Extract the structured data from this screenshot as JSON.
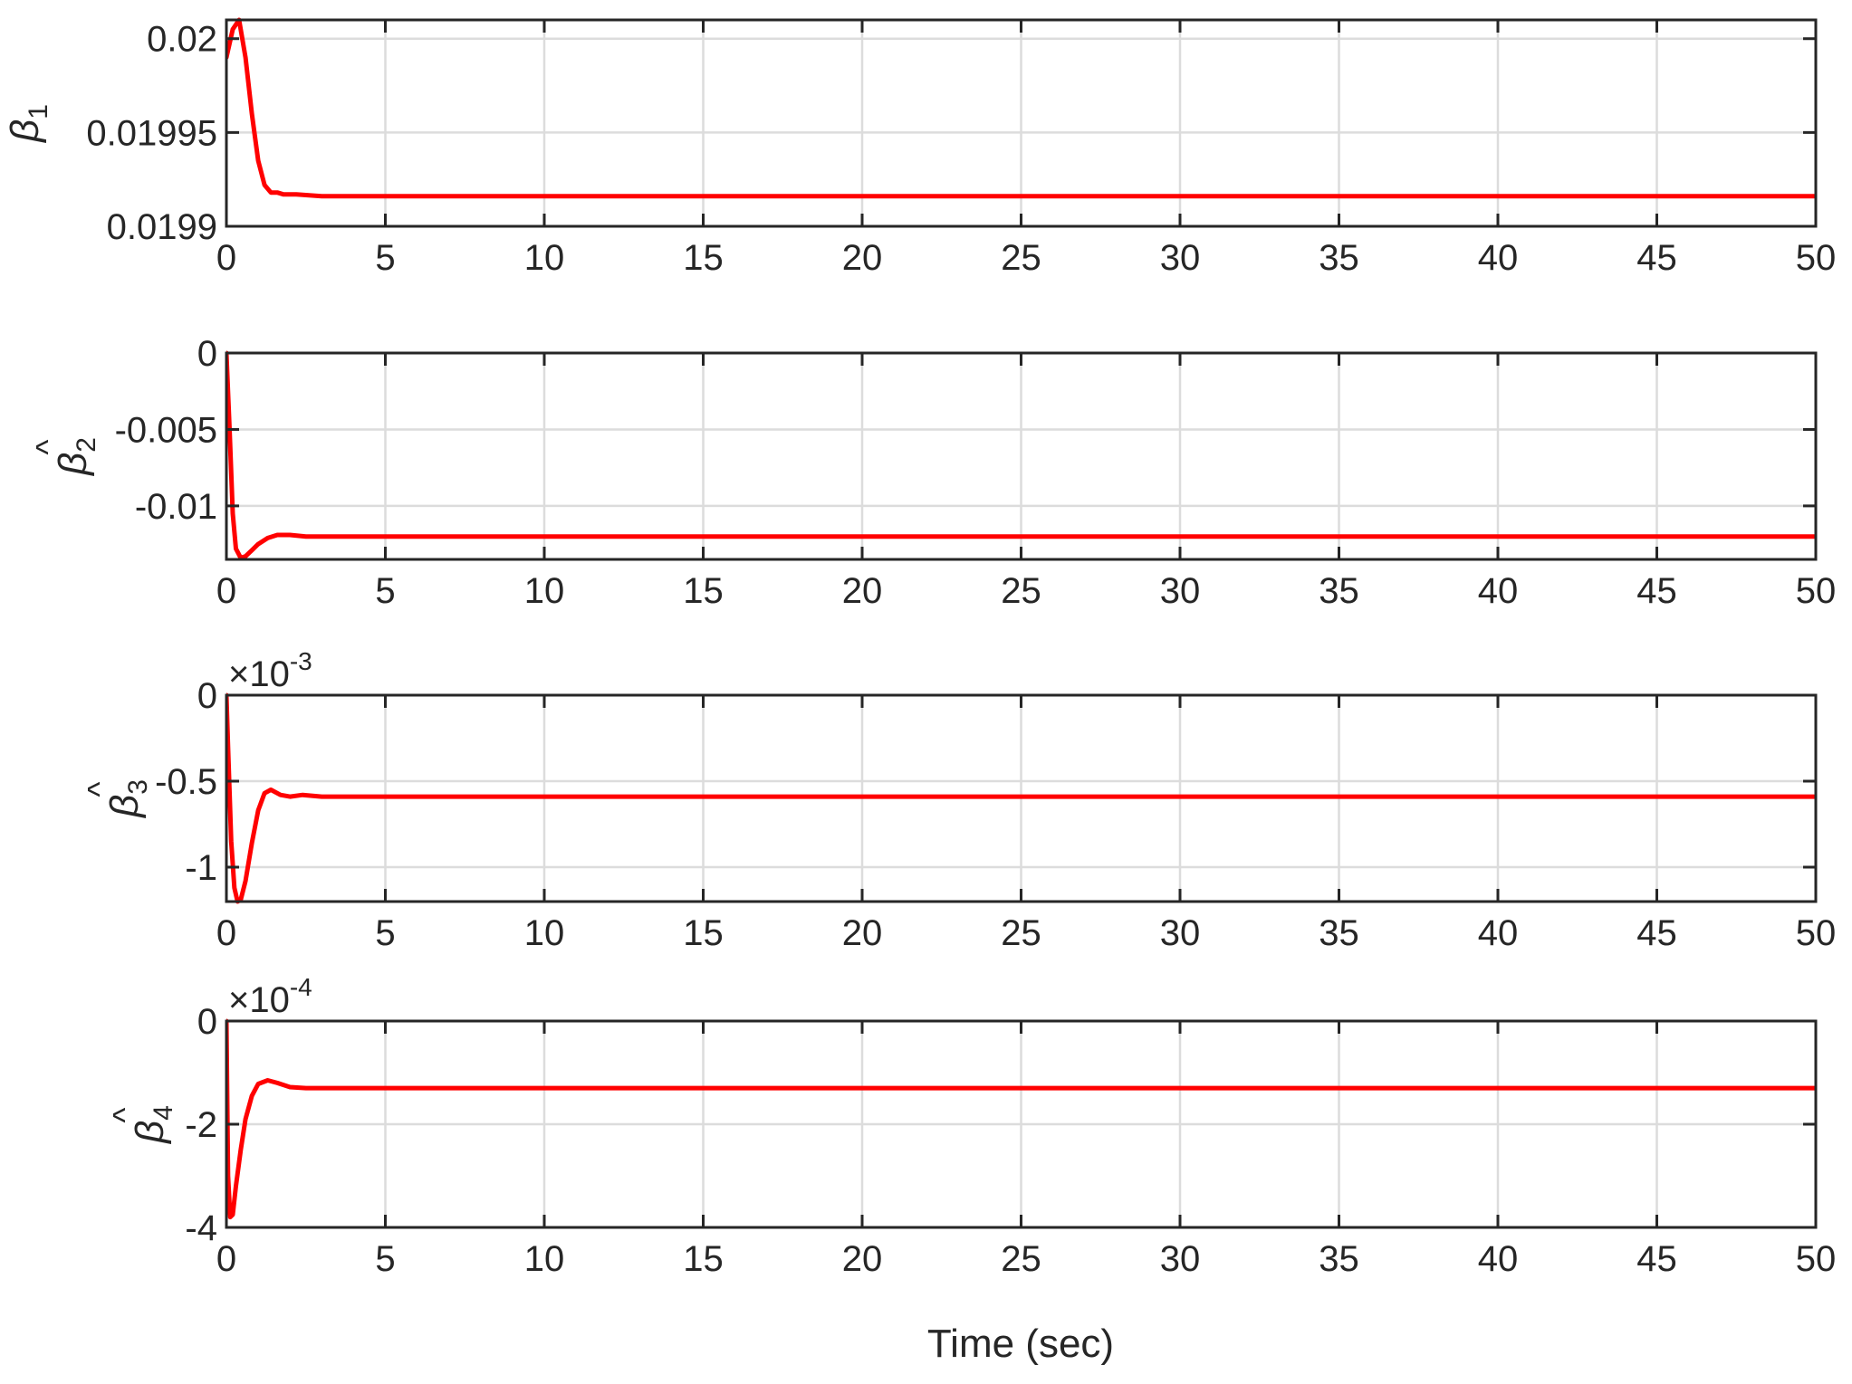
{
  "figure": {
    "xlabel": "Time (sec)",
    "line_color": "#ff0000",
    "grid": true
  },
  "chart_data": [
    {
      "type": "line",
      "ylabel": {
        "base": "β",
        "hat": "^",
        "sub": "1"
      },
      "xlim": [
        0,
        50
      ],
      "ylim": [
        0.0199,
        0.02001
      ],
      "xticks": [
        0,
        5,
        10,
        15,
        20,
        25,
        30,
        35,
        40,
        45,
        50
      ],
      "yticks": [
        0.0199,
        0.01995,
        0.02
      ],
      "ytick_labels": [
        "0.0199",
        "0.01995",
        "0.02"
      ],
      "exponent_label": "",
      "series": [
        {
          "color": "#ff0000",
          "x": [
            0,
            0.2,
            0.4,
            0.6,
            0.8,
            1.0,
            1.2,
            1.4,
            1.6,
            1.8,
            2.2,
            3,
            5,
            10,
            20,
            30,
            40,
            50
          ],
          "y": [
            0.01999,
            0.020005,
            0.02001,
            0.01999,
            0.01996,
            0.019935,
            0.019922,
            0.019918,
            0.019918,
            0.019917,
            0.019917,
            0.019916,
            0.019916,
            0.019916,
            0.019916,
            0.019916,
            0.019916,
            0.019916
          ]
        }
      ]
    },
    {
      "type": "line",
      "ylabel": {
        "base": "β",
        "hat": "^",
        "sub": "2"
      },
      "xlim": [
        0,
        50
      ],
      "ylim": [
        -0.0135,
        0
      ],
      "xticks": [
        0,
        5,
        10,
        15,
        20,
        25,
        30,
        35,
        40,
        45,
        50
      ],
      "yticks": [
        -0.01,
        -0.005,
        0
      ],
      "ytick_labels": [
        "-0.01",
        "-0.005",
        "0"
      ],
      "exponent_label": "",
      "series": [
        {
          "color": "#ff0000",
          "x": [
            0,
            0.1,
            0.2,
            0.3,
            0.45,
            0.6,
            0.8,
            1.0,
            1.3,
            1.6,
            2.0,
            2.5,
            3,
            5,
            10,
            20,
            30,
            40,
            50
          ],
          "y": [
            0,
            -0.005,
            -0.0105,
            -0.0128,
            -0.0134,
            -0.0133,
            -0.0129,
            -0.0125,
            -0.0121,
            -0.0119,
            -0.0119,
            -0.012,
            -0.012,
            -0.012,
            -0.012,
            -0.012,
            -0.012,
            -0.012,
            -0.012
          ]
        }
      ]
    },
    {
      "type": "line",
      "ylabel": {
        "base": "β",
        "hat": "^",
        "sub": "3"
      },
      "xlim": [
        0,
        50
      ],
      "ylim": [
        -1.2,
        0
      ],
      "xticks": [
        0,
        5,
        10,
        15,
        20,
        25,
        30,
        35,
        40,
        45,
        50
      ],
      "yticks": [
        -1,
        -0.5,
        0
      ],
      "ytick_labels": [
        "-1",
        "-0.5",
        "0"
      ],
      "exponent_label": "×10",
      "exponent_power": "-3",
      "series": [
        {
          "color": "#ff0000",
          "x": [
            0,
            0.05,
            0.15,
            0.25,
            0.35,
            0.45,
            0.6,
            0.8,
            1.0,
            1.2,
            1.4,
            1.7,
            2.0,
            2.4,
            3,
            5,
            10,
            20,
            30,
            40,
            50
          ],
          "y": [
            0,
            -0.3,
            -0.85,
            -1.12,
            -1.2,
            -1.19,
            -1.08,
            -0.86,
            -0.67,
            -0.57,
            -0.55,
            -0.58,
            -0.59,
            -0.58,
            -0.59,
            -0.59,
            -0.59,
            -0.59,
            -0.59,
            -0.59,
            -0.59
          ]
        }
      ]
    },
    {
      "type": "line",
      "ylabel": {
        "base": "β",
        "hat": "^",
        "sub": "4"
      },
      "xlim": [
        0,
        50
      ],
      "ylim": [
        -4,
        0
      ],
      "xticks": [
        0,
        5,
        10,
        15,
        20,
        25,
        30,
        35,
        40,
        45,
        50
      ],
      "yticks": [
        -4,
        -2,
        0
      ],
      "ytick_labels": [
        "-4",
        "-2",
        "0"
      ],
      "exponent_label": "×10",
      "exponent_power": "-4",
      "series": [
        {
          "color": "#ff0000",
          "x": [
            0,
            0.05,
            0.12,
            0.2,
            0.3,
            0.45,
            0.6,
            0.8,
            1.0,
            1.3,
            1.6,
            2.0,
            2.5,
            3,
            5,
            10,
            20,
            30,
            40,
            50
          ],
          "y": [
            0,
            -3.0,
            -3.8,
            -3.75,
            -3.2,
            -2.5,
            -1.9,
            -1.45,
            -1.22,
            -1.15,
            -1.2,
            -1.28,
            -1.3,
            -1.3,
            -1.3,
            -1.3,
            -1.3,
            -1.3,
            -1.3,
            -1.3
          ]
        }
      ]
    }
  ]
}
